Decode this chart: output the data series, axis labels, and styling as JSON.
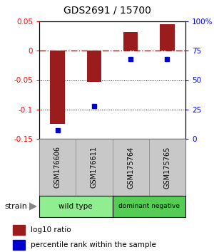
{
  "title": "GDS2691 / 15700",
  "samples": [
    "GSM176606",
    "GSM176611",
    "GSM175764",
    "GSM175765"
  ],
  "log10_ratio": [
    -0.125,
    -0.053,
    0.032,
    0.045
  ],
  "percentile_rank": [
    7,
    28,
    68,
    68
  ],
  "ylim_left": [
    -0.15,
    0.05
  ],
  "ylim_right": [
    0,
    100
  ],
  "bar_color": "#9B1C1C",
  "dot_color": "#0000CC",
  "groups": [
    {
      "label": "wild type",
      "samples": [
        0,
        1
      ],
      "color": "#90EE90"
    },
    {
      "label": "dominant negative",
      "samples": [
        2,
        3
      ],
      "color": "#55CC55"
    }
  ],
  "strain_label": "strain",
  "legend_bar": "log10 ratio",
  "legend_dot": "percentile rank within the sample",
  "hline_zero_color": "#CC0000",
  "hline_dotted_color": "#111111",
  "background_color": "#ffffff",
  "plot_bg": "#ffffff",
  "left_yticks": [
    0.05,
    0.0,
    -0.05,
    -0.1,
    -0.15
  ],
  "left_yticklabels": [
    "0.05",
    "0",
    "-0.05",
    "-0.1",
    "-0.15"
  ],
  "right_yticks": [
    100,
    75,
    50,
    25,
    0
  ],
  "right_yticklabels": [
    "100%",
    "75",
    "50",
    "25",
    "0"
  ],
  "bar_width": 0.4,
  "sample_box_color": "#C8C8C8",
  "sample_box_edge": "#888888"
}
